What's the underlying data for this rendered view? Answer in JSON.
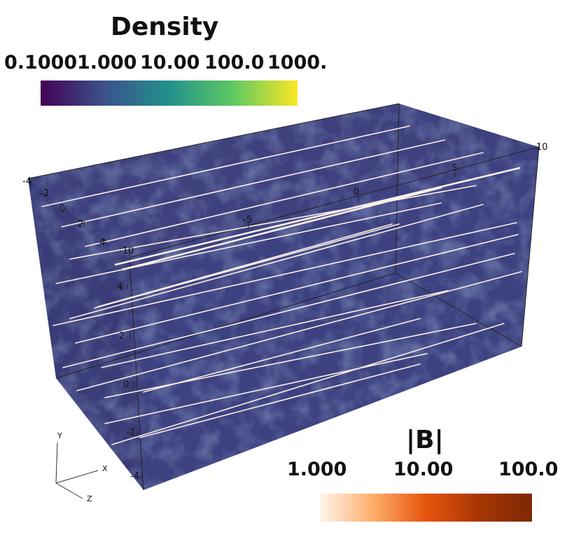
{
  "density_colorbar": {
    "title": "Density",
    "ticks": [
      "0.1000",
      "1.000",
      "10.00",
      "100.0",
      "1000."
    ],
    "colormap": "viridis",
    "range": [
      0.1,
      1000
    ],
    "scale": "log",
    "colors": [
      "#440154",
      "#3b528b",
      "#21918c",
      "#5ec962",
      "#fde725"
    ]
  },
  "b_colorbar": {
    "title": "|B|",
    "ticks": [
      "1.000",
      "10.00",
      "100.0"
    ],
    "colormap": "oranges",
    "range": [
      1,
      100
    ],
    "scale": "log",
    "colors": [
      "#fff5eb",
      "#fdae6b",
      "#e6550d",
      "#a63603",
      "#7f2704"
    ]
  },
  "axes": {
    "x_ticks": [
      "-10",
      "-5",
      "0",
      "5",
      "10"
    ],
    "y_ticks": [
      "4",
      "2",
      "0",
      "-2",
      "-4"
    ],
    "z_ticks": [
      "-4",
      "-2",
      "0",
      "2",
      "4"
    ]
  },
  "orientation": {
    "x": "X",
    "y": "Y",
    "z": "Z"
  },
  "volume": {
    "face_color": "#3d3f7c",
    "mottle_color": "#2e2a6a",
    "streamline_color": "#fdf0e6"
  }
}
